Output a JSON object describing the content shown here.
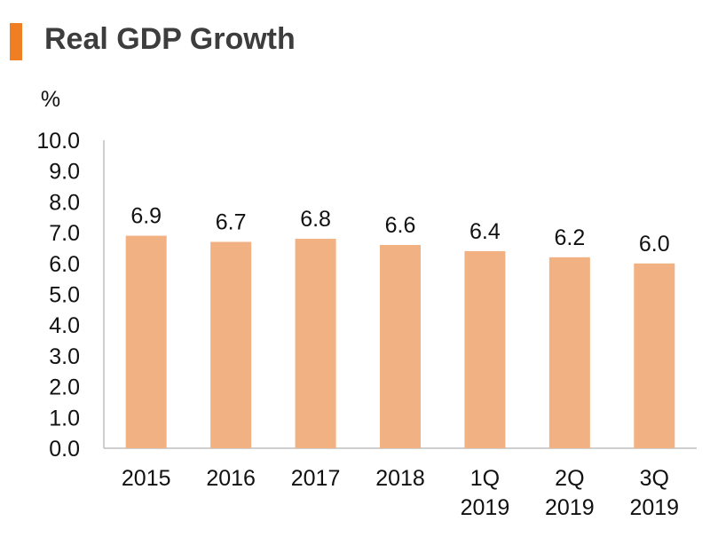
{
  "header": {
    "title": "Real GDP Growth"
  },
  "colors": {
    "accent": "#f07f23",
    "bar": "#f2b182",
    "axis": "#bfbfbf",
    "text": "#111111"
  },
  "chart_data": {
    "type": "bar",
    "title": "Real GDP Growth",
    "ylabel": "%",
    "xlabel": "",
    "ylim": [
      0,
      10
    ],
    "ytick_step": 1,
    "yticks": [
      "0.0",
      "1.0",
      "2.0",
      "3.0",
      "4.0",
      "5.0",
      "6.0",
      "7.0",
      "8.0",
      "9.0",
      "10.0"
    ],
    "categories": [
      [
        "2015"
      ],
      [
        "2016"
      ],
      [
        "2017"
      ],
      [
        "2018"
      ],
      [
        "1Q",
        "2019"
      ],
      [
        "2Q",
        "2019"
      ],
      [
        "3Q",
        "2019"
      ]
    ],
    "values": [
      6.9,
      6.7,
      6.8,
      6.6,
      6.4,
      6.2,
      6.0
    ],
    "value_labels": [
      "6.9",
      "6.7",
      "6.8",
      "6.6",
      "6.4",
      "6.2",
      "6.0"
    ],
    "grid": false,
    "legend": "none"
  }
}
